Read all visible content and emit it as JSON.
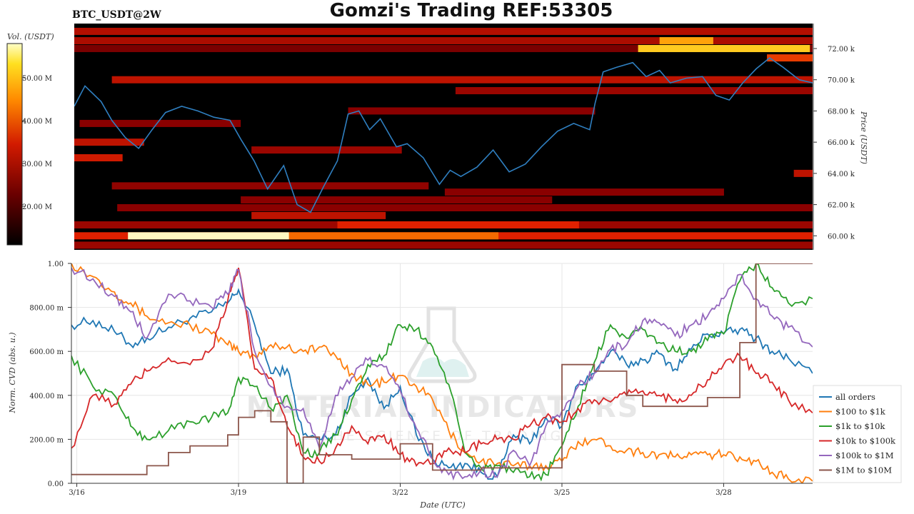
{
  "header": {
    "symbol_label": "BTC_USDT@2W",
    "title": "Gomzi's Trading REF:53305"
  },
  "watermark": {
    "line1": "MATERIAL INDICATORS",
    "line2": "THE SCIENCE OF TRADING"
  },
  "colors": {
    "price_line": "#2f7fc0",
    "heatmap_background": "#000000",
    "heatmap_low": "#5a0000",
    "heatmap_high": "#ffffff"
  },
  "chart_data": [
    {
      "type": "heatmap",
      "title": "",
      "colorbar_label": "Vol. (USDT)",
      "colorbar_ticks": [
        "50.00 M",
        "40.00 M",
        "30.00 M",
        "20.00 M"
      ],
      "colorbar_values": [
        50,
        40,
        30,
        20
      ],
      "colorbar_range": [
        11,
        58
      ],
      "ylabel": "Price (USDT)",
      "ytick_labels": [
        "72.00 k",
        "70.00 k",
        "68.00 k",
        "66.00 k",
        "64.00 k",
        "62.00 k",
        "60.00 k"
      ],
      "ytick_values": [
        72000,
        70000,
        68000,
        66000,
        64000,
        62000,
        60000
      ],
      "ylim": [
        59100,
        73600
      ],
      "xlim_days": [
        15.9,
        29.65
      ],
      "liquidity_bands": [
        {
          "price": 73100,
          "start": 15.9,
          "end": 29.65,
          "intensity": 0.42
        },
        {
          "price": 72500,
          "start": 15.9,
          "end": 29.65,
          "intensity": 0.4
        },
        {
          "price": 72500,
          "start": 26.8,
          "end": 27.8,
          "intensity": 0.78
        },
        {
          "price": 72000,
          "start": 15.9,
          "end": 29.65,
          "intensity": 0.25
        },
        {
          "price": 72000,
          "start": 26.4,
          "end": 29.6,
          "intensity": 0.85
        },
        {
          "price": 71400,
          "start": 28.8,
          "end": 29.65,
          "intensity": 0.6
        },
        {
          "price": 70000,
          "start": 16.6,
          "end": 29.65,
          "intensity": 0.45
        },
        {
          "price": 69300,
          "start": 23.0,
          "end": 29.65,
          "intensity": 0.35
        },
        {
          "price": 68000,
          "start": 21.0,
          "end": 25.6,
          "intensity": 0.3
        },
        {
          "price": 67200,
          "start": 16.0,
          "end": 19.0,
          "intensity": 0.3
        },
        {
          "price": 66000,
          "start": 15.9,
          "end": 17.2,
          "intensity": 0.45
        },
        {
          "price": 65500,
          "start": 19.2,
          "end": 22.0,
          "intensity": 0.35
        },
        {
          "price": 65000,
          "start": 15.9,
          "end": 16.8,
          "intensity": 0.5
        },
        {
          "price": 64000,
          "start": 29.3,
          "end": 29.65,
          "intensity": 0.45
        },
        {
          "price": 63200,
          "start": 16.6,
          "end": 22.5,
          "intensity": 0.32
        },
        {
          "price": 62800,
          "start": 22.8,
          "end": 28.0,
          "intensity": 0.3
        },
        {
          "price": 62300,
          "start": 19.0,
          "end": 24.8,
          "intensity": 0.3
        },
        {
          "price": 61800,
          "start": 16.7,
          "end": 29.65,
          "intensity": 0.3
        },
        {
          "price": 61300,
          "start": 19.2,
          "end": 21.7,
          "intensity": 0.45
        },
        {
          "price": 60700,
          "start": 15.9,
          "end": 29.65,
          "intensity": 0.35
        },
        {
          "price": 60700,
          "start": 20.8,
          "end": 25.3,
          "intensity": 0.55
        },
        {
          "price": 60000,
          "start": 15.9,
          "end": 29.65,
          "intensity": 0.55
        },
        {
          "price": 60000,
          "start": 16.9,
          "end": 19.9,
          "intensity": 0.97
        },
        {
          "price": 60000,
          "start": 19.9,
          "end": 23.8,
          "intensity": 0.68
        },
        {
          "price": 59400,
          "start": 15.9,
          "end": 29.65,
          "intensity": 0.35
        }
      ],
      "price_series": {
        "name": "",
        "days": [
          15.9,
          16.1,
          16.4,
          16.6,
          16.85,
          17.1,
          17.35,
          17.6,
          17.9,
          18.2,
          18.5,
          18.8,
          19.0,
          19.25,
          19.5,
          19.8,
          20.05,
          20.3,
          20.55,
          20.8,
          21.0,
          21.2,
          21.4,
          21.6,
          21.9,
          22.1,
          22.4,
          22.7,
          22.9,
          23.1,
          23.4,
          23.7,
          24.0,
          24.3,
          24.6,
          24.9,
          25.2,
          25.5,
          25.6,
          25.75,
          26.0,
          26.3,
          26.55,
          26.8,
          27.0,
          27.3,
          27.6,
          27.85,
          28.1,
          28.35,
          28.6,
          28.85,
          29.1,
          29.4,
          29.65
        ],
        "values": [
          68300,
          69600,
          68600,
          67400,
          66300,
          65600,
          66800,
          67900,
          68300,
          68000,
          67600,
          67400,
          66200,
          64800,
          63000,
          64500,
          62000,
          61500,
          63200,
          64800,
          67800,
          68000,
          66800,
          67500,
          65700,
          65900,
          65000,
          63300,
          64200,
          63800,
          64400,
          65500,
          64100,
          64600,
          65700,
          66700,
          67200,
          66800,
          68500,
          70500,
          70800,
          71100,
          70200,
          70600,
          69800,
          70100,
          70200,
          69000,
          68700,
          69800,
          70700,
          71400,
          70800,
          70000,
          69800
        ]
      }
    },
    {
      "type": "line",
      "title": "",
      "xlabel": "Date (UTC)",
      "ylabel": "Norm. CVD (abs. u.)",
      "ylim": [
        0,
        1
      ],
      "xlim_days": [
        15.9,
        29.65
      ],
      "ytick_labels": [
        "1.00",
        "800.00 m",
        "600.00 m",
        "400.00 m",
        "200.00 m",
        "0.00"
      ],
      "ytick_values": [
        1.0,
        0.8,
        0.6,
        0.4,
        0.2,
        0.0
      ],
      "xtick_labels": [
        "3/16",
        "3/19",
        "3/22",
        "3/25",
        "3/28"
      ],
      "xtick_values": [
        16,
        19,
        22,
        25,
        28
      ],
      "grid": true,
      "legend_position": "bottom-right",
      "x_days": [
        15.9,
        16.3,
        16.7,
        17.0,
        17.3,
        17.7,
        18.1,
        18.5,
        18.8,
        19.0,
        19.3,
        19.6,
        19.9,
        20.2,
        20.5,
        20.8,
        21.1,
        21.4,
        21.7,
        22.0,
        22.3,
        22.6,
        22.9,
        23.2,
        23.5,
        23.8,
        24.1,
        24.4,
        24.7,
        25.0,
        25.3,
        25.6,
        25.9,
        26.2,
        26.5,
        26.8,
        27.1,
        27.4,
        27.7,
        28.0,
        28.3,
        28.6,
        28.9,
        29.2,
        29.65
      ],
      "series": [
        {
          "name": "all orders",
          "color": "#1f77b4",
          "values": [
            0.72,
            0.74,
            0.69,
            0.63,
            0.66,
            0.71,
            0.75,
            0.78,
            0.82,
            0.88,
            0.72,
            0.5,
            0.52,
            0.22,
            0.2,
            0.22,
            0.4,
            0.48,
            0.34,
            0.44,
            0.22,
            0.11,
            0.07,
            0.09,
            0.05,
            0.03,
            0.22,
            0.18,
            0.3,
            0.26,
            0.45,
            0.5,
            0.6,
            0.54,
            0.56,
            0.59,
            0.52,
            0.61,
            0.68,
            0.68,
            0.7,
            0.66,
            0.6,
            0.57,
            0.5
          ]
        },
        {
          "name": "$100 to $1k",
          "color": "#ff7f0e",
          "values": [
            1.0,
            0.94,
            0.87,
            0.82,
            0.76,
            0.73,
            0.72,
            0.68,
            0.63,
            0.6,
            0.58,
            0.63,
            0.62,
            0.6,
            0.62,
            0.58,
            0.5,
            0.45,
            0.46,
            0.49,
            0.44,
            0.38,
            0.24,
            0.14,
            0.1,
            0.09,
            0.08,
            0.08,
            0.08,
            0.1,
            0.19,
            0.2,
            0.17,
            0.15,
            0.14,
            0.13,
            0.12,
            0.13,
            0.13,
            0.13,
            0.12,
            0.1,
            0.05,
            0.02,
            0.01
          ]
        },
        {
          "name": "$1k to $10k",
          "color": "#2ca02c",
          "values": [
            0.58,
            0.44,
            0.4,
            0.26,
            0.2,
            0.24,
            0.28,
            0.3,
            0.32,
            0.48,
            0.44,
            0.34,
            0.4,
            0.14,
            0.14,
            0.22,
            0.38,
            0.54,
            0.58,
            0.72,
            0.7,
            0.62,
            0.45,
            0.14,
            0.07,
            0.08,
            0.05,
            0.03,
            0.04,
            0.17,
            0.35,
            0.55,
            0.72,
            0.66,
            0.7,
            0.64,
            0.6,
            0.6,
            0.65,
            0.68,
            0.92,
            1.0,
            0.89,
            0.82,
            0.84
          ]
        },
        {
          "name": "$10k to $100k",
          "color": "#d62728",
          "values": [
            0.16,
            0.4,
            0.36,
            0.45,
            0.51,
            0.57,
            0.54,
            0.61,
            0.83,
            0.98,
            0.52,
            0.48,
            0.26,
            0.12,
            0.1,
            0.16,
            0.26,
            0.18,
            0.22,
            0.13,
            0.08,
            0.09,
            0.16,
            0.14,
            0.18,
            0.2,
            0.2,
            0.26,
            0.3,
            0.28,
            0.34,
            0.38,
            0.37,
            0.4,
            0.42,
            0.4,
            0.38,
            0.4,
            0.47,
            0.54,
            0.58,
            0.5,
            0.46,
            0.38,
            0.32
          ]
        },
        {
          "name": "$100k to $1M",
          "color": "#9467bd",
          "values": [
            0.98,
            0.93,
            0.85,
            0.78,
            0.66,
            0.86,
            0.83,
            0.8,
            0.86,
            0.97,
            0.6,
            0.44,
            0.35,
            0.34,
            0.16,
            0.4,
            0.48,
            0.56,
            0.53,
            0.42,
            0.25,
            0.11,
            0.04,
            0.03,
            0.06,
            0.03,
            0.15,
            0.08,
            0.26,
            0.33,
            0.44,
            0.5,
            0.61,
            0.63,
            0.74,
            0.73,
            0.67,
            0.72,
            0.76,
            0.84,
            0.95,
            0.84,
            0.76,
            0.71,
            0.62
          ]
        },
        {
          "name": "$1M to $10M",
          "color": "#8c564b",
          "values": [
            0.04,
            0.04,
            0.04,
            0.04,
            0.08,
            0.14,
            0.17,
            0.17,
            0.22,
            0.3,
            0.33,
            0.28,
            0.0,
            0.21,
            0.13,
            0.13,
            0.11,
            0.11,
            0.11,
            0.18,
            0.18,
            0.06,
            0.06,
            0.06,
            0.07,
            0.07,
            0.07,
            0.07,
            0.07,
            0.54,
            0.54,
            0.51,
            0.51,
            0.4,
            0.35,
            0.35,
            0.35,
            0.35,
            0.39,
            0.39,
            0.64,
            1.0,
            1.0,
            1.0,
            1.0
          ]
        }
      ]
    }
  ]
}
